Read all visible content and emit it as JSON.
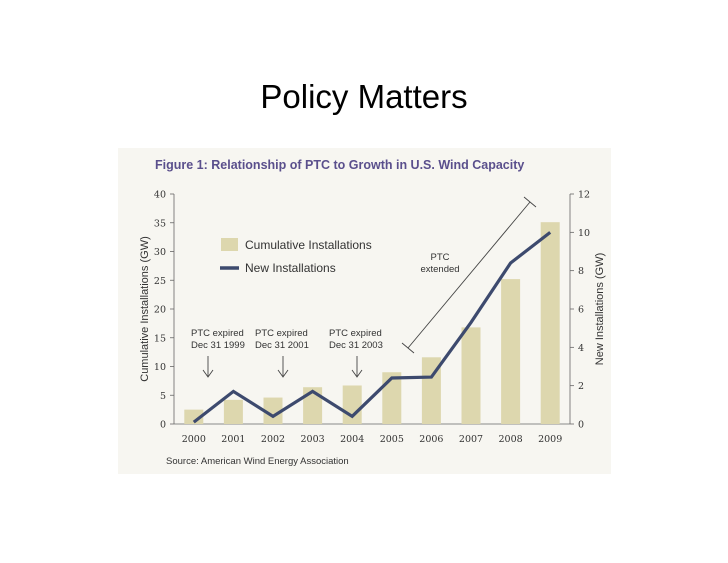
{
  "slide": {
    "title": "Policy Matters"
  },
  "colors": {
    "bar": "#ddd7ae",
    "line": "#3d4a6e",
    "panel": "#f7f6f1",
    "title": "#5a4f8c"
  },
  "chart_data": {
    "type": "bar+line",
    "title": "Figure 1: Relationship of PTC to Growth in U.S. Wind Capacity",
    "categories": [
      "2000",
      "2001",
      "2002",
      "2003",
      "2004",
      "2005",
      "2006",
      "2007",
      "2008",
      "2009"
    ],
    "ylabel_left": "Cumulative Installations (GW)",
    "ylabel_right": "New Installations (GW)",
    "ylim_left": [
      0,
      40
    ],
    "ylim_right": [
      0,
      12
    ],
    "yticks_left": [
      "0",
      "5",
      "10",
      "15",
      "20",
      "25",
      "30",
      "35",
      "40"
    ],
    "yticks_right": [
      "0",
      "2",
      "4",
      "6",
      "8",
      "10",
      "12"
    ],
    "series": [
      {
        "name": "Cumulative Installations",
        "type": "bar",
        "axis": "left",
        "values": [
          2.5,
          4.2,
          4.6,
          6.4,
          6.7,
          9.0,
          11.6,
          16.8,
          25.2,
          35.1
        ]
      },
      {
        "name": "New Installations",
        "type": "line",
        "axis": "right",
        "values": [
          0.1,
          1.7,
          0.4,
          1.7,
          0.4,
          2.4,
          2.45,
          5.3,
          8.4,
          10.0
        ]
      }
    ],
    "legend_position": "top-left",
    "annotations": [
      {
        "lines": [
          "PTC expired",
          "Dec 31 1999"
        ],
        "category": "2000"
      },
      {
        "lines": [
          "PTC expired",
          "Dec 31 2001"
        ],
        "category": "2002"
      },
      {
        "lines": [
          "PTC expired",
          "Dec 31 2003"
        ],
        "category": "2004"
      },
      {
        "lines": [
          "PTC",
          "extended"
        ],
        "span": [
          "2005",
          "2009"
        ]
      }
    ],
    "source": "Source: American Wind Energy Association",
    "grid": false
  }
}
